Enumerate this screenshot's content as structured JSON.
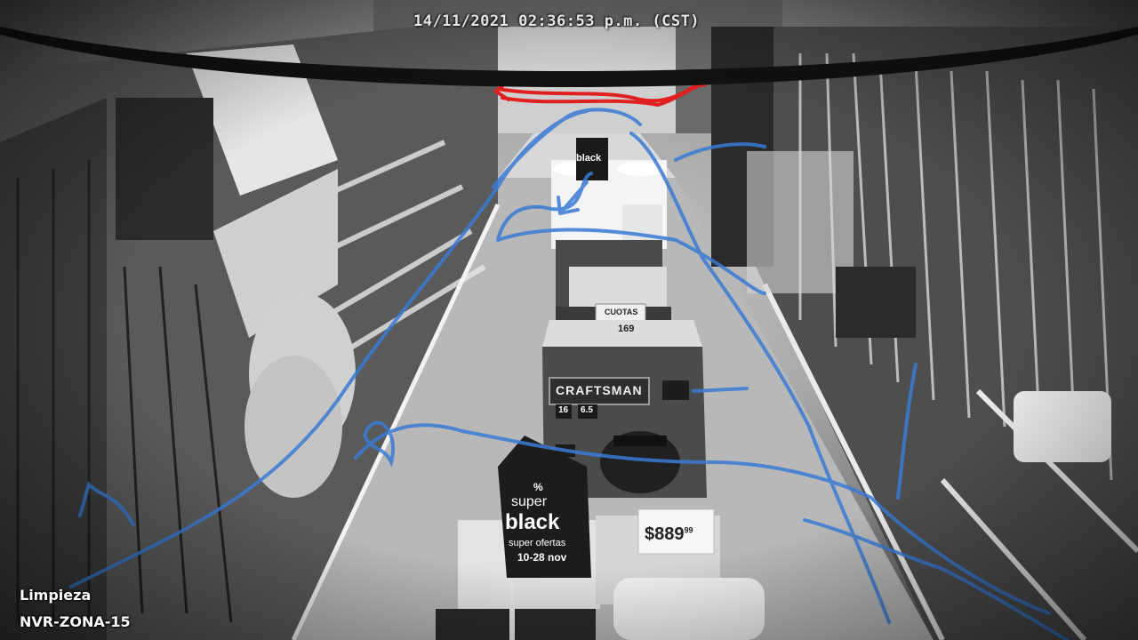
{
  "camera": {
    "timestamp": "14/11/2021 02:36:53 p.m. (CST)",
    "zone_label": "Limpieza",
    "nvr_label": "NVR-ZONA-15"
  },
  "signs": {
    "craftsman_brand": "CRAFTSMAN",
    "super_black_pct": "%",
    "super_black_word1": "super",
    "super_black_word2": "black",
    "super_black_offer": "super ofertas",
    "super_black_dates": "10-28 nov",
    "price_tag": "$889",
    "price_cents": "99",
    "cuotas_label": "CUOTAS",
    "cuotas_price": "169",
    "back_sign_word": "black",
    "box_label_16": "16",
    "box_label_65": "6.5"
  },
  "overlay_colors": {
    "heatpath_blue": "#3a7bd5",
    "heatpath_red": "#e02020"
  }
}
